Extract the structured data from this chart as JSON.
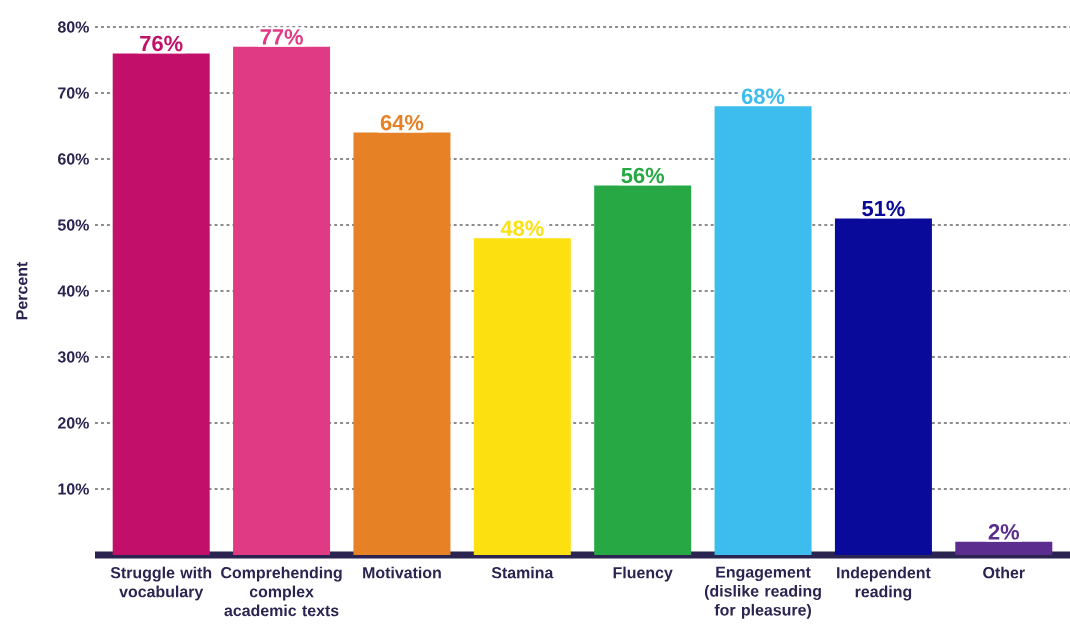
{
  "chart_data": {
    "type": "bar",
    "ylabel": "Percent",
    "categories": [
      "Struggle with vocabulary",
      "Comprehending complex academic texts",
      "Motivation",
      "Stamina",
      "Fluency",
      "Engagement (dislike reading for pleasure)",
      "Independent reading",
      "Other"
    ],
    "values": [
      76,
      77,
      64,
      48,
      56,
      68,
      51,
      2
    ],
    "value_labels": [
      "76%",
      "77%",
      "64%",
      "48%",
      "56%",
      "68%",
      "51%",
      "2%"
    ],
    "colors": [
      "#c2106a",
      "#e03a84",
      "#e68125",
      "#fde010",
      "#27a844",
      "#3dbdee",
      "#0a0a9a",
      "#5b2d8e"
    ],
    "ylim": [
      0,
      80
    ],
    "yticks": [
      {
        "value": 10,
        "label": "10%"
      },
      {
        "value": 20,
        "label": "20%"
      },
      {
        "value": 30,
        "label": "30%"
      },
      {
        "value": 40,
        "label": "40%"
      },
      {
        "value": 50,
        "label": "50%"
      },
      {
        "value": 60,
        "label": "60%"
      },
      {
        "value": 70,
        "label": "70%"
      },
      {
        "value": 80,
        "label": "80%"
      }
    ],
    "grid": "y"
  }
}
